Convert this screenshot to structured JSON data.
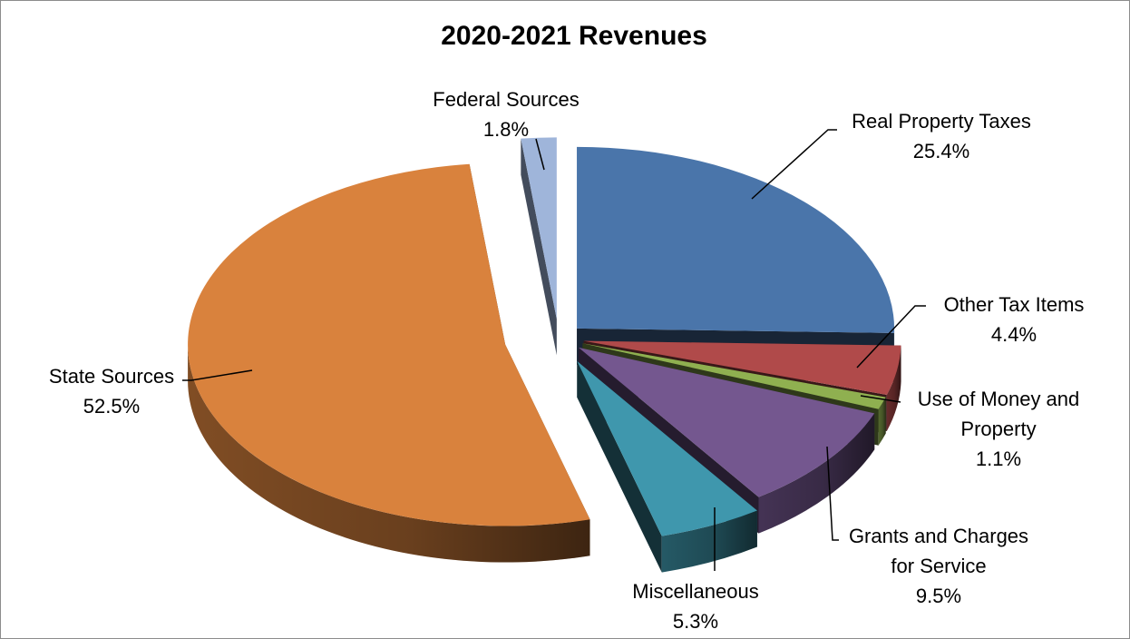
{
  "chart_data": {
    "type": "pie",
    "title": "2020-2021 Revenues",
    "style": "3d-exploded",
    "legend": "none",
    "slices": [
      {
        "name": "Real Property Taxes",
        "value": 25.4,
        "label_lines": [
          "Real Property Taxes",
          "25.4%"
        ],
        "color": "#4a75aa"
      },
      {
        "name": "Other Tax Items",
        "value": 4.4,
        "label_lines": [
          "Other Tax Items",
          "4.4%"
        ],
        "color": "#b04a4a"
      },
      {
        "name": "Use of Money and Property",
        "value": 1.1,
        "label_lines": [
          "Use of Money and",
          "Property",
          "1.1%"
        ],
        "color": "#8fb050"
      },
      {
        "name": "Grants and Charges for Service",
        "value": 9.5,
        "label_lines": [
          "Grants and Charges",
          "for Service",
          "9.5%"
        ],
        "color": "#74578f"
      },
      {
        "name": "Miscellaneous",
        "value": 5.3,
        "label_lines": [
          "Miscellaneous",
          "5.3%"
        ],
        "color": "#3f97ad"
      },
      {
        "name": "State Sources",
        "value": 52.5,
        "label_lines": [
          "State Sources",
          "52.5%"
        ],
        "color": "#d9823d"
      },
      {
        "name": "Federal Sources",
        "value": 1.8,
        "label_lines": [
          "Federal Sources",
          "1.8%"
        ],
        "color": "#9fb5da"
      }
    ]
  }
}
